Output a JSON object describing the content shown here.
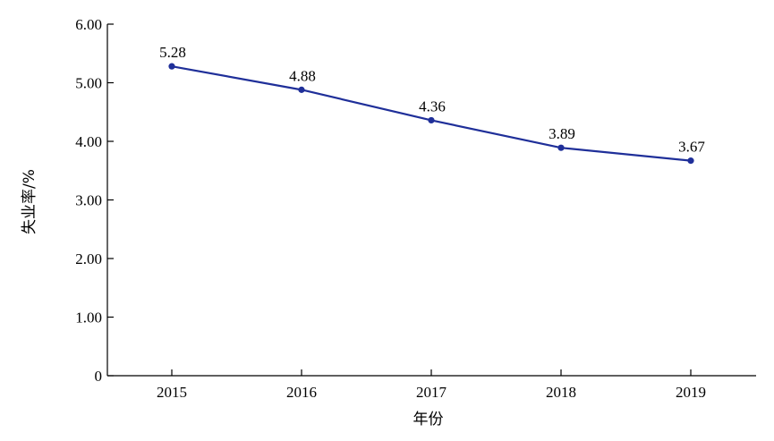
{
  "chart_data": {
    "type": "line",
    "title": "",
    "xlabel": "年份",
    "ylabel": "失业率/%",
    "categories": [
      "2015",
      "2016",
      "2017",
      "2018",
      "2019"
    ],
    "series": [
      {
        "values": [
          5.28,
          4.88,
          4.36,
          3.89,
          3.67
        ],
        "data_labels": [
          "5.28",
          "4.88",
          "4.36",
          "3.89",
          "3.67"
        ]
      }
    ],
    "ylim": [
      0,
      6
    ],
    "yticks": [
      0,
      1,
      2,
      3,
      4,
      5,
      6
    ],
    "ytick_labels": [
      "0",
      "1.00",
      "2.00",
      "3.00",
      "4.00",
      "5.00",
      "6.00"
    ],
    "grid": false,
    "legend": "none",
    "line_color": "#1f2f99"
  }
}
